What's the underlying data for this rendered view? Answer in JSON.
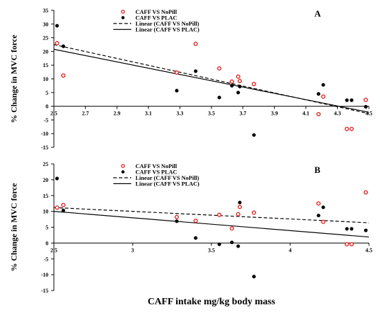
{
  "colors": {
    "caff_vs_nopill": "#e8211d",
    "caff_vs_plac": "#000000"
  },
  "xlabel": "CAFF intake mg/kg body mass",
  "chart_data": [
    {
      "type": "scatter",
      "panel": "A",
      "ylabel": "% Change in MVC force",
      "xlim": [
        2.5,
        4.5
      ],
      "ylim": [
        -15,
        35
      ],
      "x_ticks": [
        "2.5",
        "2.7",
        "2.9",
        "3.1",
        "3.3",
        "3.5",
        "3.7",
        "3.9",
        "4.1",
        "4.3",
        "4.5"
      ],
      "y_ticks": [
        "35",
        "30",
        "25",
        "20",
        "15",
        "10",
        "5",
        "0",
        "-5",
        "-10",
        "-15"
      ],
      "legend": [
        "CAFF VS NoPill",
        "CAFF VS PLAC",
        "Linear (CAFF VS NoPill)",
        "Linear (CAFF VS PLAC)"
      ],
      "series": [
        {
          "name": "CAFF VS NoPill",
          "color": "#e8211d",
          "points": [
            [
              2.52,
              23.0
            ],
            [
              2.56,
              11.2
            ],
            [
              3.28,
              12.3
            ],
            [
              3.4,
              22.8
            ],
            [
              3.55,
              13.8
            ],
            [
              3.63,
              9.0
            ],
            [
              3.67,
              10.8
            ],
            [
              3.68,
              9.2
            ],
            [
              3.77,
              8.1
            ],
            [
              4.18,
              -2.9
            ],
            [
              4.21,
              3.5
            ],
            [
              4.36,
              -8.3
            ],
            [
              4.39,
              -8.3
            ],
            [
              4.48,
              2.3
            ]
          ]
        },
        {
          "name": "CAFF VS PLAC",
          "color": "#000000",
          "points": [
            [
              2.52,
              29.4
            ],
            [
              2.56,
              21.9
            ],
            [
              3.28,
              5.7
            ],
            [
              3.4,
              12.8
            ],
            [
              3.55,
              3.2
            ],
            [
              3.63,
              7.5
            ],
            [
              3.67,
              5.0
            ],
            [
              3.68,
              7.2
            ],
            [
              3.77,
              -10.5
            ],
            [
              4.18,
              4.5
            ],
            [
              4.21,
              7.8
            ],
            [
              4.36,
              2.2
            ],
            [
              4.39,
              2.2
            ],
            [
              4.48,
              -0.2
            ]
          ]
        },
        {
          "name": "Linear (CAFF VS NoPill)",
          "style": "dashed",
          "line": [
            [
              2.5,
              22.5
            ],
            [
              4.5,
              -2.7
            ]
          ]
        },
        {
          "name": "Linear (CAFF VS PLAC)",
          "style": "solid",
          "line": [
            [
              2.5,
              20.8
            ],
            [
              4.5,
              -2.2
            ]
          ]
        }
      ]
    },
    {
      "type": "scatter",
      "panel": "B",
      "ylabel": "% Change in MVC force",
      "xlim": [
        2.5,
        4.5
      ],
      "ylim": [
        -15,
        25
      ],
      "x_ticks": [
        "2.5",
        "3",
        "3.5",
        "4",
        "4.5"
      ],
      "y_ticks": [
        "25",
        "20",
        "15",
        "10",
        "5",
        "0",
        "-5",
        "-10",
        "-15"
      ],
      "legend": [
        "CAFF VS NoPill",
        "CAFF VS PLAC",
        "Linear (CAFF VS NoPill)",
        "Linear (CAFF VS PLAC)"
      ],
      "series": [
        {
          "name": "CAFF VS NoPill",
          "color": "#e8211d",
          "points": [
            [
              2.52,
              11.2
            ],
            [
              2.56,
              12.0
            ],
            [
              3.28,
              8.2
            ],
            [
              3.4,
              7.0
            ],
            [
              3.55,
              8.9
            ],
            [
              3.63,
              4.6
            ],
            [
              3.67,
              9.1
            ],
            [
              3.68,
              11.4
            ],
            [
              3.77,
              9.6
            ],
            [
              4.18,
              12.5
            ],
            [
              4.21,
              6.7
            ],
            [
              4.36,
              -0.4
            ],
            [
              4.39,
              -0.4
            ],
            [
              4.48,
              16.0
            ]
          ]
        },
        {
          "name": "CAFF VS PLAC",
          "color": "#000000",
          "points": [
            [
              2.52,
              20.4
            ],
            [
              2.56,
              10.3
            ],
            [
              3.28,
              6.9
            ],
            [
              3.4,
              1.6
            ],
            [
              3.55,
              -0.4
            ],
            [
              3.63,
              0.2
            ],
            [
              3.67,
              -1.0
            ],
            [
              3.68,
              12.8
            ],
            [
              3.77,
              -10.6
            ],
            [
              4.18,
              8.7
            ],
            [
              4.21,
              11.3
            ],
            [
              4.36,
              4.5
            ],
            [
              4.39,
              4.5
            ],
            [
              4.48,
              4.0
            ]
          ]
        },
        {
          "name": "Linear (CAFF VS NoPill)",
          "style": "dashed",
          "line": [
            [
              2.5,
              11.2
            ],
            [
              4.5,
              6.4
            ]
          ]
        },
        {
          "name": "Linear (CAFF VS PLAC)",
          "style": "solid",
          "line": [
            [
              2.5,
              10.0
            ],
            [
              4.5,
              1.9
            ]
          ]
        }
      ]
    }
  ]
}
